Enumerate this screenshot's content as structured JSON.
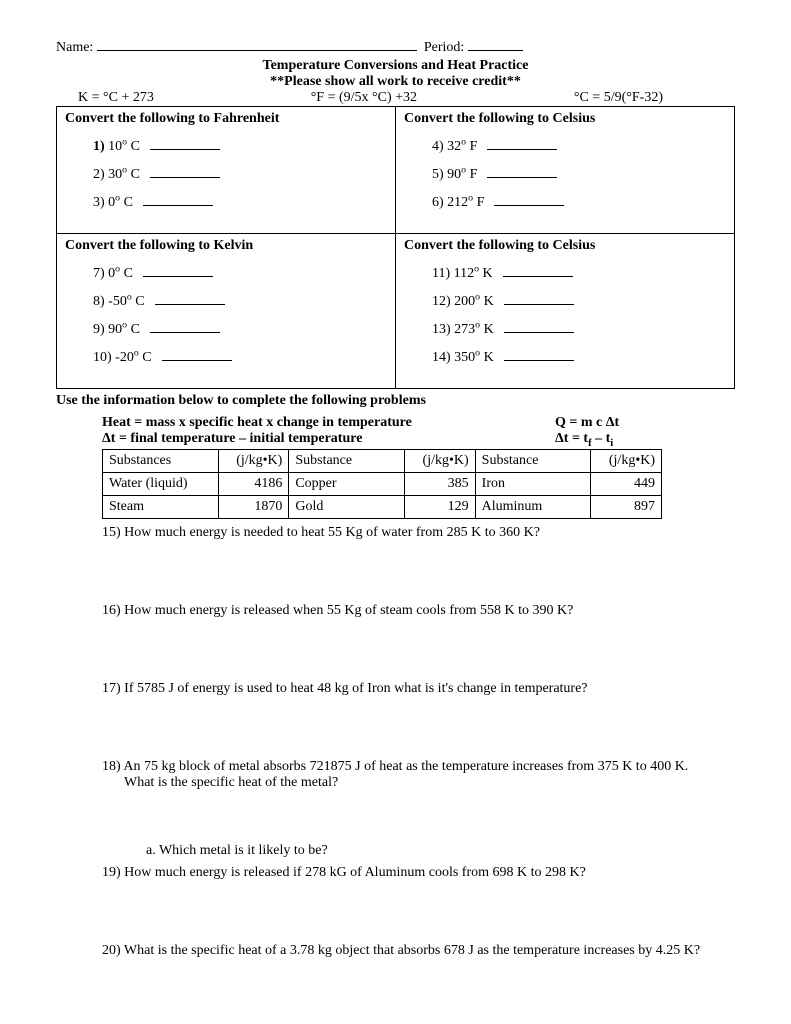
{
  "header": {
    "name_label": "Name:",
    "period_label": "Period:",
    "title": "Temperature Conversions and Heat Practice",
    "subtitle": "**Please show all work to receive credit**"
  },
  "formulas": {
    "kelvin": "K = °C + 273",
    "fahrenheit": "°F = (9/5x °C) +32",
    "celsius": "°C = 5/9(°F-32)"
  },
  "cells": {
    "a": {
      "title": "Convert the following to Fahrenheit",
      "items": [
        {
          "n": "1)",
          "v": "10",
          "u": "C",
          "bold": true
        },
        {
          "n": "2)",
          "v": "30",
          "u": "C"
        },
        {
          "n": "3)",
          "v": "0",
          "u": "C"
        }
      ]
    },
    "b": {
      "title": "Convert the following to Celsius",
      "items": [
        {
          "n": "4)",
          "v": "32",
          "u": "F"
        },
        {
          "n": "5)",
          "v": "90",
          "u": "F"
        },
        {
          "n": "6)",
          "v": "212",
          "u": "F"
        }
      ]
    },
    "c": {
      "title": "Convert the following to Kelvin",
      "items": [
        {
          "n": "7)",
          "v": "0",
          "u": "C"
        },
        {
          "n": "8)",
          "v": "-50",
          "u": "C"
        },
        {
          "n": "9)",
          "v": "90",
          "u": "C"
        },
        {
          "n": "10)",
          "v": "-20",
          "u": "C"
        }
      ]
    },
    "d": {
      "title": "Convert the following to Celsius",
      "items": [
        {
          "n": "11)",
          "v": "112",
          "u": "K"
        },
        {
          "n": "12)",
          "v": "200",
          "u": "K"
        },
        {
          "n": "13)",
          "v": "273",
          "u": "K"
        },
        {
          "n": "14)",
          "v": "350",
          "u": "K"
        }
      ]
    }
  },
  "info_heading": "Use the information below to complete the following problems",
  "heat_eq_words": "Heat = mass x specific heat x change in temperature",
  "heat_eq_sym": "Q = m c Δt",
  "dt_words": "Δt = final temperature – initial temperature",
  "substances": {
    "h_name": "Substances",
    "h_unit": "(j/kg•K)",
    "h_name2": "Substance",
    "rows": [
      [
        "Water (liquid)",
        "4186",
        "Copper",
        "385",
        "Iron",
        "449"
      ],
      [
        "Steam",
        "1870",
        "Gold",
        "129",
        "Aluminum",
        "897"
      ]
    ]
  },
  "problems": {
    "p15": "15) How much energy is needed to heat  55 Kg of water from 285 K to 360 K?",
    "p16": "16) How much energy is released when 55 Kg of steam cools from 558 K to 390 K?",
    "p17": "17) If 5785 J of energy is used to heat 48 kg of Iron what is it's change in temperature?",
    "p18a": "18) An 75 kg block of metal absorbs 721875 J of heat as the temperature increases from 375 K to 400 K.",
    "p18b": "What is the specific heat of the metal?",
    "p18sub": "a.    Which metal is it likely to be?",
    "p19": "19) How much energy is released if 278 kG of Aluminum cools from 698 K to 298 K?",
    "p20": "20) What is the specific heat of a 3.78 kg object that absorbs 678 J as the temperature increases by 4.25 K?"
  }
}
